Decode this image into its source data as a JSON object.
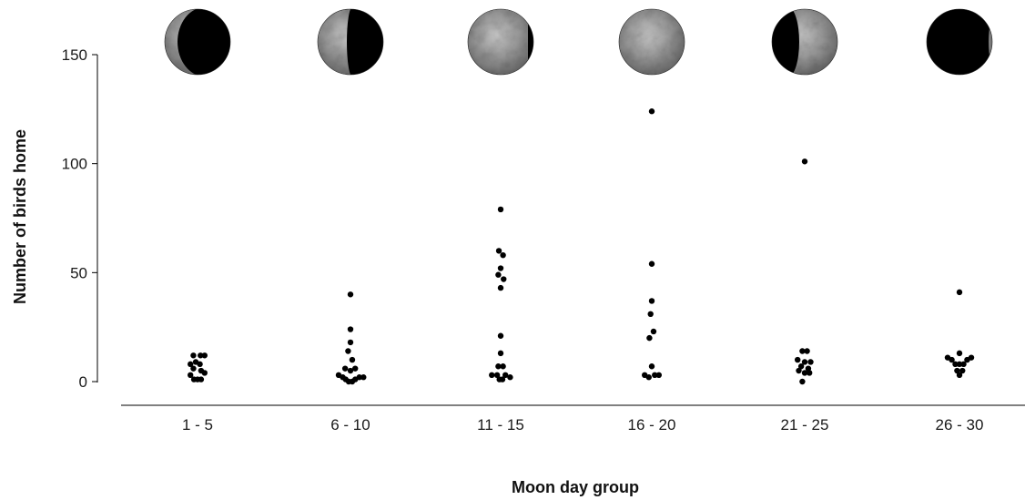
{
  "chart_data": {
    "type": "scatter",
    "title": "",
    "xlabel": "Moon day group",
    "ylabel": "Number of birds home",
    "categories": [
      "1 - 5",
      "6 - 10",
      "11 - 15",
      "16 - 20",
      "21 - 25",
      "26 - 30"
    ],
    "ylim": [
      0,
      150
    ],
    "yticks": [
      0,
      50,
      100,
      150
    ],
    "grid": false,
    "legend": "none",
    "marker_color": "#000000",
    "moon_phases": [
      "waxing-crescent",
      "first-quarter",
      "waxing-gibbous",
      "full-moon",
      "waning-gibbous",
      "new-moon"
    ],
    "groups": [
      {
        "category": "1 - 5",
        "points": [
          {
            "dx": -0.7,
            "y": 12
          },
          {
            "dx": 0.5,
            "y": 12
          },
          {
            "dx": 1.2,
            "y": 12
          },
          {
            "dx": -1.2,
            "y": 8
          },
          {
            "dx": -0.3,
            "y": 9
          },
          {
            "dx": 0.4,
            "y": 8
          },
          {
            "dx": -0.7,
            "y": 6
          },
          {
            "dx": 0.6,
            "y": 5
          },
          {
            "dx": -1.2,
            "y": 3
          },
          {
            "dx": 1.2,
            "y": 4
          },
          {
            "dx": -0.6,
            "y": 1
          },
          {
            "dx": 0.0,
            "y": 1
          },
          {
            "dx": 0.6,
            "y": 1
          }
        ]
      },
      {
        "category": "6 - 10",
        "points": [
          {
            "dx": 0.0,
            "y": 40
          },
          {
            "dx": 0.0,
            "y": 24
          },
          {
            "dx": 0.0,
            "y": 18
          },
          {
            "dx": -0.4,
            "y": 14
          },
          {
            "dx": 0.3,
            "y": 10
          },
          {
            "dx": -0.9,
            "y": 6
          },
          {
            "dx": 0.0,
            "y": 5
          },
          {
            "dx": 0.8,
            "y": 6
          },
          {
            "dx": -2.0,
            "y": 3
          },
          {
            "dx": -1.3,
            "y": 2
          },
          {
            "dx": 1.5,
            "y": 2
          },
          {
            "dx": 2.2,
            "y": 2
          },
          {
            "dx": -0.8,
            "y": 1
          },
          {
            "dx": -0.3,
            "y": 0
          },
          {
            "dx": 0.3,
            "y": 0
          },
          {
            "dx": 0.8,
            "y": 1
          }
        ]
      },
      {
        "category": "11 - 15",
        "points": [
          {
            "dx": 0.0,
            "y": 79
          },
          {
            "dx": -0.3,
            "y": 60
          },
          {
            "dx": 0.4,
            "y": 58
          },
          {
            "dx": 0.0,
            "y": 52
          },
          {
            "dx": -0.4,
            "y": 49
          },
          {
            "dx": 0.5,
            "y": 47
          },
          {
            "dx": 0.0,
            "y": 43
          },
          {
            "dx": 0.0,
            "y": 21
          },
          {
            "dx": 0.0,
            "y": 13
          },
          {
            "dx": -0.4,
            "y": 7
          },
          {
            "dx": 0.4,
            "y": 7
          },
          {
            "dx": -1.5,
            "y": 3
          },
          {
            "dx": -0.6,
            "y": 3
          },
          {
            "dx": 0.8,
            "y": 3
          },
          {
            "dx": 1.6,
            "y": 2
          },
          {
            "dx": -0.2,
            "y": 1
          },
          {
            "dx": 0.3,
            "y": 1
          }
        ]
      },
      {
        "category": "16 - 20",
        "points": [
          {
            "dx": 0.0,
            "y": 124
          },
          {
            "dx": 0.0,
            "y": 54
          },
          {
            "dx": 0.0,
            "y": 37
          },
          {
            "dx": -0.2,
            "y": 31
          },
          {
            "dx": 0.3,
            "y": 23
          },
          {
            "dx": -0.4,
            "y": 20
          },
          {
            "dx": 0.0,
            "y": 7
          },
          {
            "dx": -1.2,
            "y": 3
          },
          {
            "dx": -0.5,
            "y": 2
          },
          {
            "dx": 0.5,
            "y": 3
          },
          {
            "dx": 1.2,
            "y": 3
          }
        ]
      },
      {
        "category": "21 - 25",
        "points": [
          {
            "dx": 0.0,
            "y": 101
          },
          {
            "dx": -0.4,
            "y": 14
          },
          {
            "dx": 0.4,
            "y": 14
          },
          {
            "dx": -1.2,
            "y": 10
          },
          {
            "dx": 0.0,
            "y": 9
          },
          {
            "dx": 1.0,
            "y": 9
          },
          {
            "dx": -0.6,
            "y": 7
          },
          {
            "dx": 0.6,
            "y": 6
          },
          {
            "dx": -1.0,
            "y": 5
          },
          {
            "dx": 0.0,
            "y": 4
          },
          {
            "dx": 0.8,
            "y": 4
          },
          {
            "dx": -0.4,
            "y": 0
          }
        ]
      },
      {
        "category": "26 - 30",
        "points": [
          {
            "dx": 0.0,
            "y": 41
          },
          {
            "dx": 0.0,
            "y": 13
          },
          {
            "dx": -2.0,
            "y": 11
          },
          {
            "dx": -1.3,
            "y": 10
          },
          {
            "dx": 1.3,
            "y": 10
          },
          {
            "dx": 2.0,
            "y": 11
          },
          {
            "dx": -0.7,
            "y": 8
          },
          {
            "dx": 0.0,
            "y": 8
          },
          {
            "dx": 0.7,
            "y": 8
          },
          {
            "dx": -0.4,
            "y": 5
          },
          {
            "dx": 0.5,
            "y": 5
          },
          {
            "dx": 0.0,
            "y": 3
          }
        ]
      }
    ]
  }
}
